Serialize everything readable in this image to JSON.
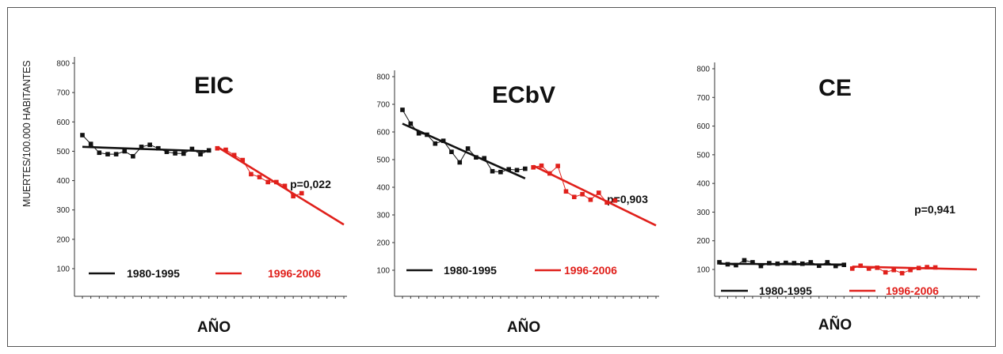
{
  "ylabel": "MUERTES/100.000 HABITANTES",
  "colors": {
    "series1": "#111111",
    "series2": "#e0201b",
    "axis": "#333333"
  },
  "chart_data": [
    {
      "type": "line",
      "title": "EIC",
      "xlabel": "AÑO",
      "ylabel": "MUERTES/100.000 HABITANTES",
      "ylim": [
        0,
        800
      ],
      "yticks": [
        100,
        200,
        300,
        400,
        500,
        600,
        700,
        800
      ],
      "annotation": "p=0,022",
      "series": [
        {
          "name": "1980-1995",
          "x": [
            1980,
            1981,
            1982,
            1983,
            1984,
            1985,
            1986,
            1987,
            1988,
            1989,
            1990,
            1991,
            1992,
            1993,
            1994,
            1995
          ],
          "values": [
            555,
            525,
            495,
            490,
            490,
            500,
            483,
            515,
            522,
            510,
            498,
            493,
            492,
            508,
            490,
            503
          ],
          "trend": [
            [
              1980,
              515
            ],
            [
              1995,
              500
            ]
          ]
        },
        {
          "name": "1996-2006",
          "x": [
            1996,
            1997,
            1998,
            1999,
            2000,
            2001,
            2002,
            2003,
            2004,
            2005,
            2006
          ],
          "values": [
            510,
            505,
            487,
            470,
            422,
            412,
            395,
            395,
            382,
            347,
            357
          ],
          "trend": [
            [
              1996,
              515
            ],
            [
              2011,
              250
            ]
          ]
        }
      ]
    },
    {
      "type": "line",
      "title": "ECbV",
      "xlabel": "AÑO",
      "ylabel": "",
      "ylim": [
        0,
        800
      ],
      "yticks": [
        100,
        200,
        300,
        400,
        500,
        600,
        700,
        800
      ],
      "annotation": "p=0,903",
      "series": [
        {
          "name": "1980-1995",
          "x": [
            1980,
            1981,
            1982,
            1983,
            1984,
            1985,
            1986,
            1987,
            1988,
            1989,
            1990,
            1991,
            1992,
            1993,
            1994,
            1995
          ],
          "values": [
            680,
            630,
            595,
            590,
            558,
            568,
            528,
            490,
            540,
            508,
            505,
            458,
            455,
            465,
            462,
            467
          ],
          "trend": [
            [
              1980,
              630
            ],
            [
              1995,
              432
            ]
          ]
        },
        {
          "name": "1996-2006",
          "x": [
            1996,
            1997,
            1998,
            1999,
            2000,
            2001,
            2002,
            2003,
            2004,
            2005,
            2006
          ],
          "values": [
            472,
            478,
            450,
            477,
            385,
            365,
            375,
            355,
            380,
            345,
            352
          ],
          "trend": [
            [
              1996,
              478
            ],
            [
              2011,
              262
            ]
          ]
        }
      ]
    },
    {
      "type": "line",
      "title": "CE",
      "xlabel": "AÑO",
      "ylabel": "",
      "ylim": [
        0,
        800
      ],
      "yticks": [
        100,
        200,
        300,
        400,
        500,
        600,
        700,
        800
      ],
      "annotation": "p=0,941",
      "series": [
        {
          "name": "1980-1995",
          "x": [
            1980,
            1981,
            1982,
            1983,
            1984,
            1985,
            1986,
            1987,
            1988,
            1989,
            1990,
            1991,
            1992,
            1993,
            1994,
            1995
          ],
          "values": [
            125,
            118,
            115,
            132,
            125,
            112,
            122,
            120,
            123,
            122,
            120,
            125,
            113,
            125,
            112,
            116
          ],
          "trend": [
            [
              1980,
              120
            ],
            [
              1995,
              117
            ]
          ]
        },
        {
          "name": "1996-2006",
          "x": [
            1996,
            1997,
            1998,
            1999,
            2000,
            2001,
            2002,
            2003,
            2004,
            2005,
            2006
          ],
          "values": [
            103,
            113,
            103,
            106,
            90,
            98,
            87,
            98,
            105,
            108,
            107
          ],
          "trend": [
            [
              1996,
              110
            ],
            [
              2011,
              100
            ]
          ]
        }
      ]
    }
  ]
}
